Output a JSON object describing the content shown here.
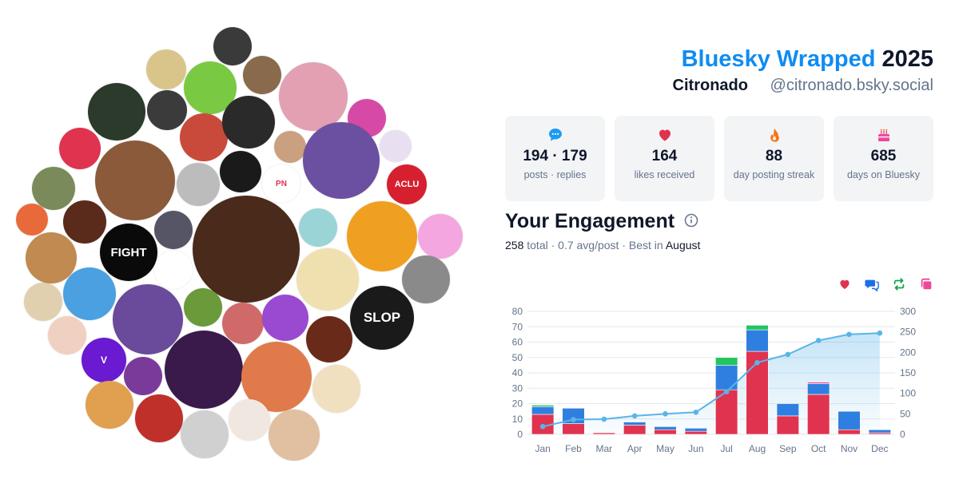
{
  "header": {
    "title_accent": "Bluesky Wrapped",
    "title_year": "2025",
    "display_name": "Citronado",
    "handle": "@citronado.bsky.social"
  },
  "stats": [
    {
      "icon": "chat-bubble-icon",
      "value": "194 · 179",
      "label": "posts · replies",
      "color": "#1d9bf0"
    },
    {
      "icon": "heart-icon",
      "value": "164",
      "label": "likes received",
      "color": "#e0334f"
    },
    {
      "icon": "flame-icon",
      "value": "88",
      "label": "day posting streak",
      "color": "#f97316"
    },
    {
      "icon": "cake-icon",
      "value": "685",
      "label": "days on Bluesky",
      "color": "#ec4899"
    }
  ],
  "engagement": {
    "title": "Your Engagement",
    "total_num": "258",
    "total_word": "total",
    "avg": "0.7 avg/post",
    "best_prefix": "Best in",
    "best_month": "August",
    "legend_icons": [
      {
        "icon": "heart-icon",
        "color": "#e0334f"
      },
      {
        "icon": "reply-icon",
        "color": "#1d6fe0"
      },
      {
        "icon": "repost-icon",
        "color": "#16a34a"
      },
      {
        "icon": "quote-icon",
        "color": "#ec4899"
      }
    ]
  },
  "chart_data": {
    "type": "bar",
    "categories": [
      "Jan",
      "Feb",
      "Mar",
      "Apr",
      "May",
      "Jun",
      "Jul",
      "Aug",
      "Sep",
      "Oct",
      "Nov",
      "Dec"
    ],
    "series": [
      {
        "values": [
          13,
          7,
          1,
          6,
          3,
          2,
          29,
          54,
          12,
          26,
          3,
          1
        ],
        "color": "#e0334f"
      },
      {
        "values": [
          5,
          10,
          0,
          2,
          2,
          2,
          16,
          14,
          8,
          7,
          12,
          2
        ],
        "color": "#2f7fe0"
      },
      {
        "values": [
          1,
          0,
          0,
          0,
          0,
          0,
          5,
          3,
          0,
          0,
          0,
          0
        ],
        "color": "#22c55e"
      },
      {
        "values": [
          0,
          0,
          0,
          0,
          0,
          0,
          0,
          0,
          0,
          1,
          0,
          0
        ],
        "color": "#ec4899"
      }
    ],
    "cumulative": {
      "values": [
        19,
        36,
        37,
        45,
        50,
        54,
        104,
        175,
        195,
        229,
        244,
        247
      ],
      "color": "#5ab4e8"
    },
    "ylim": [
      0,
      80
    ],
    "yticks": [
      0,
      10,
      20,
      30,
      40,
      50,
      60,
      70,
      80
    ],
    "y2lim": [
      0,
      300
    ],
    "y2ticks": [
      0,
      50,
      100,
      150,
      200,
      250,
      300
    ],
    "grid": true
  },
  "avatars": [
    {
      "color": "#3a3a3a",
      "letter": ""
    },
    {
      "color": "#d9c58a",
      "letter": ""
    },
    {
      "color": "#8a6a4c",
      "letter": ""
    },
    {
      "color": "#7ac943",
      "letter": ""
    },
    {
      "color": "#3b3b3b",
      "letter": ""
    },
    {
      "color": "#e2a0b2",
      "letter": ""
    },
    {
      "color": "#d64aa6",
      "letter": ""
    },
    {
      "color": "#2b3a2a",
      "letter": ""
    },
    {
      "color": "#c94a3a",
      "letter": ""
    },
    {
      "color": "#2a2a2a",
      "letter": ""
    },
    {
      "color": "#caa080",
      "letter": ""
    },
    {
      "color": "#6b4fa0",
      "letter": ""
    },
    {
      "color": "#e8e0f0",
      "letter": ""
    },
    {
      "color": "#e0334f",
      "letter": ""
    },
    {
      "color": "#8a5a3a",
      "letter": ""
    },
    {
      "color": "#bcbcbc",
      "letter": ""
    },
    {
      "color": "#1a1a1a",
      "letter": ""
    },
    {
      "color": "#ffffff",
      "letter": "PN"
    },
    {
      "color": "#d62030",
      "letter": "ACLU"
    },
    {
      "color": "#7a8a5a",
      "letter": ""
    },
    {
      "color": "#4a2a1a",
      "letter": ""
    },
    {
      "color": "#9ad4d6",
      "letter": ""
    },
    {
      "color": "#f0a020",
      "letter": ""
    },
    {
      "color": "#f3a6e0",
      "letter": ""
    },
    {
      "color": "#e86a3a",
      "letter": ""
    },
    {
      "color": "#5a2a1a",
      "letter": ""
    },
    {
      "color": "#0a0a0a",
      "letter": "FIGHT"
    },
    {
      "color": "#555566",
      "letter": ""
    },
    {
      "color": "#f0e0b0",
      "letter": ""
    },
    {
      "color": "#8a8a8a",
      "letter": ""
    },
    {
      "color": "#c08a50",
      "letter": ""
    },
    {
      "color": "#ffffff",
      "letter": ""
    },
    {
      "color": "#4aa0e0",
      "letter": ""
    },
    {
      "color": "#6a4a9a",
      "letter": ""
    },
    {
      "color": "#6a9a3a",
      "letter": ""
    },
    {
      "color": "#1a1a1a",
      "letter": "SLOP"
    },
    {
      "color": "#e0d0b0",
      "letter": ""
    },
    {
      "color": "#d06a6a",
      "letter": ""
    },
    {
      "color": "#9a4ad0",
      "letter": ""
    },
    {
      "color": "#6a2a1a",
      "letter": ""
    },
    {
      "color": "#f0d0c0",
      "letter": ""
    },
    {
      "color": "#6a1ad0",
      "letter": "V"
    },
    {
      "color": "#7a3a9a",
      "letter": ""
    },
    {
      "color": "#3a1a4a",
      "letter": ""
    },
    {
      "color": "#e07a4a",
      "letter": ""
    },
    {
      "color": "#f0e0c0",
      "letter": ""
    },
    {
      "color": "#e0a050",
      "letter": ""
    },
    {
      "color": "#c0302a",
      "letter": ""
    },
    {
      "color": "#d0d0d0",
      "letter": ""
    },
    {
      "color": "#f0e8e0",
      "letter": ""
    },
    {
      "color": "#e0c0a0",
      "letter": ""
    }
  ]
}
